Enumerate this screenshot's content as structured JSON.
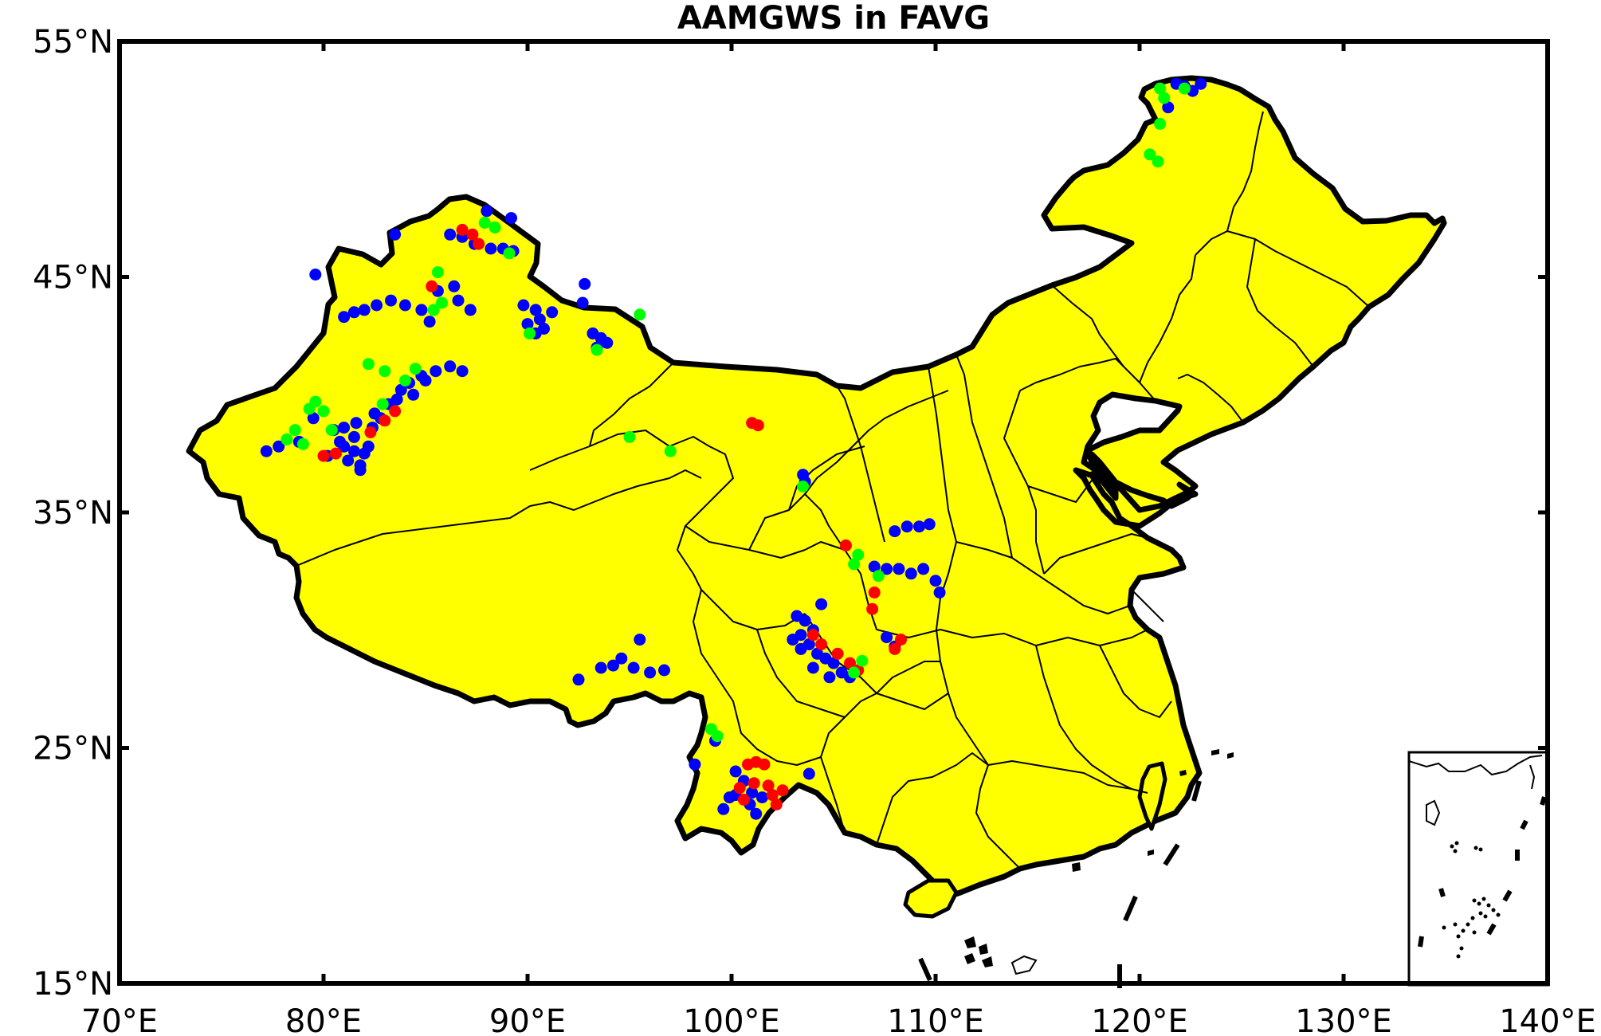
{
  "title": "AAMGWS in FAVG",
  "x_ticks": [
    "70°E",
    "80°E",
    "90°E",
    "100°E",
    "110°E",
    "120°E",
    "130°E",
    "140°E"
  ],
  "y_ticks": [
    "55°N",
    "45°N",
    "35°N",
    "25°N",
    "15°N"
  ],
  "colors": {
    "land": "#ffff00",
    "boundary": "#000000",
    "marker_red": "#ff0000",
    "marker_blue": "#0000ff",
    "marker_green": "#00ff00"
  },
  "chart_data": {
    "type": "scatter",
    "title": "AAMGWS in FAVG",
    "xlim": [
      70,
      140
    ],
    "ylim": [
      15,
      55
    ],
    "x_unit": "°E",
    "y_unit": "°N",
    "grid": false,
    "series": [
      {
        "color": "#0000ff",
        "points": [
          [
            80.5,
            38.5
          ],
          [
            81,
            38.6
          ],
          [
            81.5,
            38.2
          ],
          [
            81,
            37.8
          ],
          [
            81.5,
            37.6
          ],
          [
            82,
            37.5
          ],
          [
            81.2,
            37.2
          ],
          [
            81.8,
            37.0
          ],
          [
            82.2,
            37.8
          ],
          [
            80.8,
            38.0
          ],
          [
            81.6,
            38.8
          ],
          [
            82.4,
            38.6
          ],
          [
            82.8,
            39.0
          ],
          [
            83.2,
            39.6
          ],
          [
            83.8,
            40.2
          ],
          [
            84.2,
            40.5
          ],
          [
            84.8,
            40.8
          ],
          [
            85.5,
            41.0
          ],
          [
            86.2,
            41.2
          ],
          [
            86.8,
            41.0
          ],
          [
            85,
            40.6
          ],
          [
            84.4,
            40.0
          ],
          [
            83.6,
            39.8
          ],
          [
            82.5,
            39.2
          ],
          [
            79.5,
            39.0
          ],
          [
            78.8,
            38.0
          ],
          [
            77.8,
            37.8
          ],
          [
            77.2,
            37.6
          ],
          [
            80.2,
            37.4
          ],
          [
            81.8,
            36.8
          ],
          [
            81.5,
            43.5
          ],
          [
            82,
            43.6
          ],
          [
            82.6,
            43.8
          ],
          [
            83.3,
            44.0
          ],
          [
            84,
            43.8
          ],
          [
            84.8,
            43.6
          ],
          [
            85.2,
            43.1
          ],
          [
            81,
            43.3
          ],
          [
            85.6,
            44.4
          ],
          [
            86.4,
            44.6
          ],
          [
            86.6,
            44.0
          ],
          [
            87.2,
            43.6
          ],
          [
            86.2,
            46.8
          ],
          [
            86.8,
            46.7
          ],
          [
            87.4,
            46.4
          ],
          [
            88.2,
            46.2
          ],
          [
            88.8,
            46.2
          ],
          [
            89.3,
            46.1
          ],
          [
            79.6,
            45.1
          ],
          [
            83.5,
            46.8
          ],
          [
            88,
            47.8
          ],
          [
            89.2,
            47.5
          ],
          [
            89.8,
            43.8
          ],
          [
            90.4,
            43.6
          ],
          [
            90.6,
            43.2
          ],
          [
            90,
            43.0
          ],
          [
            90.8,
            42.8
          ],
          [
            91.2,
            43.5
          ],
          [
            90.4,
            42.6
          ],
          [
            92.7,
            43.9
          ],
          [
            93.2,
            42.6
          ],
          [
            93.6,
            42.4
          ],
          [
            93.9,
            42.2
          ],
          [
            93.4,
            42.0
          ],
          [
            92.8,
            44.7
          ],
          [
            93.6,
            28.4
          ],
          [
            94.2,
            28.5
          ],
          [
            94.6,
            28.8
          ],
          [
            95.2,
            28.4
          ],
          [
            96.0,
            28.2
          ],
          [
            96.7,
            28.3
          ],
          [
            92.5,
            27.9
          ],
          [
            95.5,
            29.6
          ],
          [
            103.2,
            30.6
          ],
          [
            103.6,
            30.4
          ],
          [
            104.0,
            30.0
          ],
          [
            103.4,
            29.8
          ],
          [
            103.8,
            29.4
          ],
          [
            104.2,
            29.0
          ],
          [
            104.6,
            28.8
          ],
          [
            105.0,
            28.6
          ],
          [
            105.4,
            28.2
          ],
          [
            105.8,
            28.0
          ],
          [
            103.0,
            29.6
          ],
          [
            103.4,
            29.2
          ],
          [
            104.0,
            28.4
          ],
          [
            104.8,
            28.0
          ],
          [
            104.4,
            31.1
          ],
          [
            107.0,
            32.7
          ],
          [
            107.6,
            32.6
          ],
          [
            108.2,
            32.6
          ],
          [
            108.8,
            32.4
          ],
          [
            109.4,
            32.6
          ],
          [
            110.0,
            32.1
          ],
          [
            110.2,
            31.6
          ],
          [
            108.0,
            34.2
          ],
          [
            108.6,
            34.4
          ],
          [
            109.2,
            34.4
          ],
          [
            109.7,
            34.5
          ],
          [
            107.6,
            29.7
          ],
          [
            108.0,
            29.3
          ],
          [
            103.5,
            36.6
          ],
          [
            103.6,
            36.3
          ],
          [
            98.2,
            24.3
          ],
          [
            99.2,
            25.3
          ],
          [
            100.2,
            24.0
          ],
          [
            100.6,
            23.6
          ],
          [
            100.2,
            23.0
          ],
          [
            100.9,
            22.6
          ],
          [
            101.2,
            22.2
          ],
          [
            99.6,
            22.4
          ],
          [
            99.9,
            22.9
          ],
          [
            101.0,
            23.1
          ],
          [
            101.5,
            22.9
          ],
          [
            103.8,
            23.9
          ],
          [
            121.8,
            53.2
          ],
          [
            122.2,
            53.1
          ],
          [
            122.6,
            52.9
          ],
          [
            123.0,
            53.2
          ],
          [
            121.4,
            52.2
          ]
        ]
      },
      {
        "color": "#ff0000",
        "points": [
          [
            86.8,
            47.0
          ],
          [
            87.3,
            46.8
          ],
          [
            87.6,
            46.4
          ],
          [
            80.0,
            37.4
          ],
          [
            80.6,
            37.5
          ],
          [
            82.3,
            38.4
          ],
          [
            83.0,
            38.9
          ],
          [
            83.5,
            39.3
          ],
          [
            85.3,
            44.6
          ],
          [
            101.0,
            38.8
          ],
          [
            101.3,
            38.7
          ],
          [
            105.6,
            33.6
          ],
          [
            104.0,
            29.8
          ],
          [
            104.4,
            29.4
          ],
          [
            105.2,
            29.0
          ],
          [
            105.8,
            28.6
          ],
          [
            108.0,
            29.2
          ],
          [
            108.3,
            29.6
          ],
          [
            106.2,
            28.3
          ],
          [
            100.8,
            24.3
          ],
          [
            101.2,
            24.4
          ],
          [
            101.6,
            24.3
          ],
          [
            100.4,
            23.3
          ],
          [
            101.1,
            23.5
          ],
          [
            101.8,
            23.4
          ],
          [
            102.0,
            23.0
          ],
          [
            102.5,
            23.2
          ],
          [
            102.2,
            22.6
          ],
          [
            100.6,
            22.8
          ],
          [
            106.9,
            30.9
          ],
          [
            107.0,
            31.6
          ]
        ]
      },
      {
        "color": "#00ff00",
        "points": [
          [
            79.3,
            39.4
          ],
          [
            79.6,
            39.7
          ],
          [
            80.0,
            39.3
          ],
          [
            78.6,
            38.5
          ],
          [
            78.2,
            38.1
          ],
          [
            79.0,
            37.9
          ],
          [
            80.4,
            38.5
          ],
          [
            82.9,
            39.6
          ],
          [
            84.0,
            40.6
          ],
          [
            84.5,
            41.1
          ],
          [
            82.2,
            41.3
          ],
          [
            83.0,
            41.0
          ],
          [
            85.6,
            45.2
          ],
          [
            85.8,
            43.9
          ],
          [
            85.4,
            43.6
          ],
          [
            87.9,
            47.3
          ],
          [
            88.4,
            47.1
          ],
          [
            89.1,
            46.0
          ],
          [
            90.1,
            42.6
          ],
          [
            95.5,
            43.4
          ],
          [
            93.4,
            41.9
          ],
          [
            95.0,
            38.2
          ],
          [
            97.0,
            37.6
          ],
          [
            103.5,
            36.1
          ],
          [
            106.2,
            33.2
          ],
          [
            106.0,
            32.8
          ],
          [
            107.2,
            32.3
          ],
          [
            106.4,
            28.7
          ],
          [
            106.0,
            28.2
          ],
          [
            99.0,
            25.8
          ],
          [
            99.3,
            25.5
          ],
          [
            121.0,
            53.0
          ],
          [
            121.2,
            52.6
          ],
          [
            121.0,
            51.5
          ],
          [
            120.5,
            50.2
          ],
          [
            120.9,
            49.9
          ],
          [
            122.2,
            53.0
          ]
        ]
      }
    ]
  }
}
